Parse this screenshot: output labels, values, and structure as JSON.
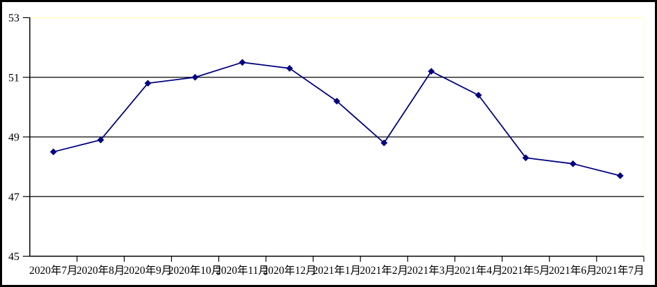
{
  "window": {
    "background": "#ffffff",
    "border_color": "#000000"
  },
  "chart_data": {
    "type": "line",
    "categories": [
      "2020年7月",
      "2020年8月",
      "2020年9月",
      "2020年10月",
      "2020年11月",
      "2020年12月",
      "2021年1月",
      "2021年2月",
      "2021年3月",
      "2021年4月",
      "2021年5月",
      "2021年6月",
      "2021年7月"
    ],
    "values": [
      48.5,
      48.9,
      50.8,
      51.0,
      51.5,
      51.3,
      50.2,
      48.8,
      51.2,
      50.4,
      48.3,
      48.1,
      47.7
    ],
    "title": "",
    "xlabel": "",
    "ylabel": "",
    "ylim": [
      45,
      53
    ],
    "y_ticks": [
      45,
      47,
      49,
      51,
      53
    ],
    "y_tick_labels": [
      "45",
      "47",
      "49",
      "51",
      "53"
    ],
    "gridline_values": [
      47,
      49,
      51
    ],
    "gridline_color": "#000000",
    "axis_color": "#000000",
    "plot_top_right_border_color": "#ffffcc",
    "series_color": "#000080",
    "marker": "diamond",
    "legend_position": "none",
    "grid": "horizontal-only"
  }
}
